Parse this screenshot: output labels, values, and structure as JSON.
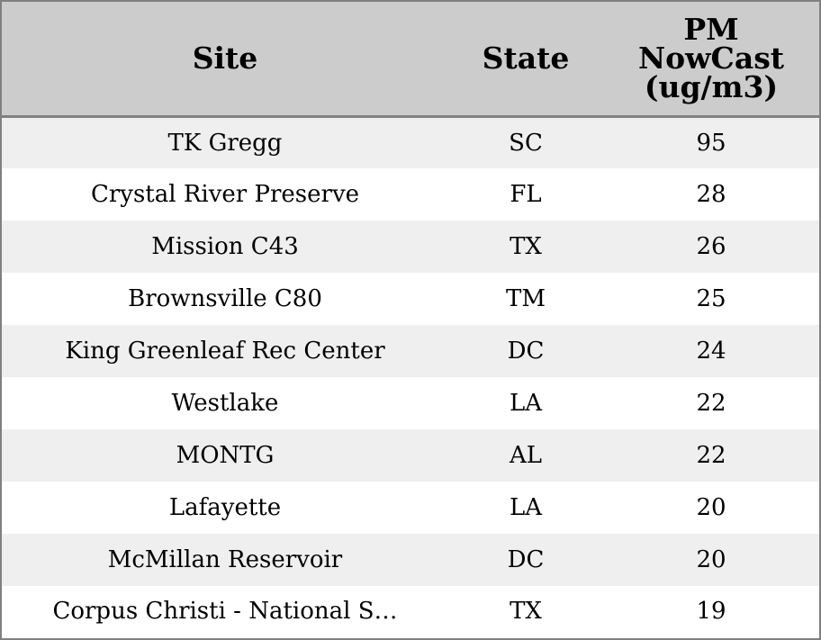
{
  "chart_data": {
    "type": "table",
    "columns": [
      "Site",
      "State",
      "PM NowCast (ug/m3)"
    ],
    "header_lines": [
      [
        "Site"
      ],
      [
        "State"
      ],
      [
        "PM",
        "NowCast",
        "(ug/m3)"
      ]
    ],
    "rows": [
      [
        "TK Gregg",
        "SC",
        "95"
      ],
      [
        "Crystal River Preserve",
        "FL",
        "28"
      ],
      [
        "Mission C43",
        "TX",
        "26"
      ],
      [
        "Brownsville C80",
        "TM",
        "25"
      ],
      [
        "King Greenleaf Rec Center",
        "DC",
        "24"
      ],
      [
        "Westlake",
        "LA",
        "22"
      ],
      [
        "MONTG",
        "AL",
        "22"
      ],
      [
        "Lafayette",
        "LA",
        "20"
      ],
      [
        "McMillan Reservoir",
        "DC",
        "20"
      ],
      [
        "Corpus Christi - National S…",
        "TX",
        "19"
      ]
    ],
    "colors": {
      "header_background": "#cccccc",
      "row_stripe": "#efefef",
      "row_plain": "#ffffff",
      "border": "#808080"
    }
  }
}
